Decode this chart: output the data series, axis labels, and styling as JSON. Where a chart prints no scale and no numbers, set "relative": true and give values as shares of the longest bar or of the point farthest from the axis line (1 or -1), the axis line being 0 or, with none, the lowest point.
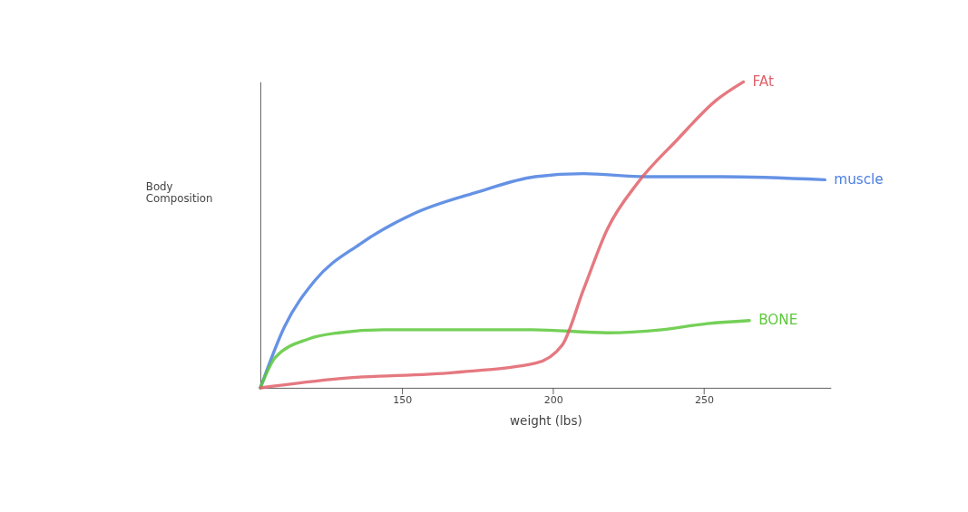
{
  "chart_data": {
    "type": "line",
    "xlabel": "weight (lbs)",
    "ylabel": "Body Composition",
    "relative": true,
    "xlim": [
      103,
      292
    ],
    "xticks": [
      150,
      200,
      250
    ],
    "grid": false,
    "marker": "none",
    "line_style": "solid",
    "series": [
      {
        "name": "muscle",
        "color": "#4a7fe0",
        "x": [
          103,
          111,
          121,
          136,
          154,
          175,
          194,
          210,
          231,
          256,
          290
        ],
        "values": [
          0,
          0.2,
          0.35,
          0.47,
          0.57,
          0.64,
          0.69,
          0.7,
          0.69,
          0.69,
          0.68
        ]
      },
      {
        "name": "BONE",
        "color": "#5cc83a",
        "x": [
          103,
          108,
          119,
          129,
          144,
          167,
          193,
          218,
          236,
          251,
          265
        ],
        "values": [
          0,
          0.1,
          0.16,
          0.18,
          0.19,
          0.19,
          0.19,
          0.18,
          0.19,
          0.21,
          0.22
        ]
      },
      {
        "name": "FAt",
        "color": "#e0606a",
        "x": [
          103,
          129,
          167,
          194,
          203,
          210,
          218,
          228,
          241,
          254,
          263
        ],
        "values": [
          0,
          0.03,
          0.05,
          0.08,
          0.14,
          0.32,
          0.52,
          0.67,
          0.81,
          0.94,
          1.0
        ]
      }
    ]
  }
}
